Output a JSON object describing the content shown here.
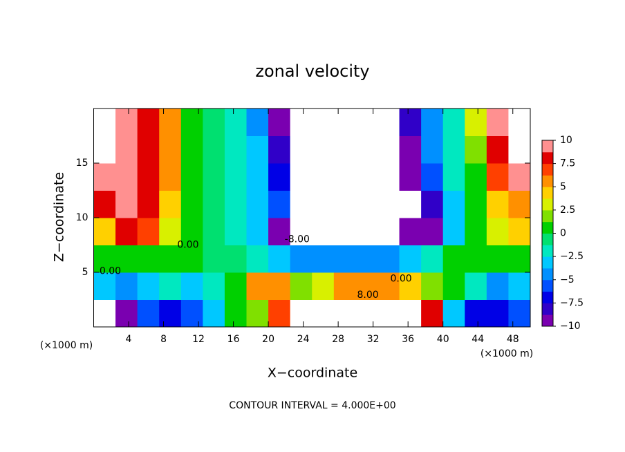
{
  "chart_data": {
    "type": "contour",
    "title": "zonal velocity",
    "xlabel": "X−coordinate",
    "ylabel": "Z−coordinate",
    "xunit": "(×1000 m)",
    "yunit": "(×1000 m)",
    "footer": "CONTOUR INTERVAL = 4.000E+00",
    "xlim": [
      0,
      50
    ],
    "ylim": [
      0,
      20
    ],
    "xticks": [
      4,
      8,
      12,
      16,
      20,
      24,
      28,
      32,
      36,
      40,
      44,
      48
    ],
    "yticks": [
      5,
      10,
      15
    ],
    "x": [
      1.25,
      3.75,
      6.25,
      8.75,
      11.25,
      13.75,
      16.25,
      18.75,
      21.25,
      23.75,
      26.25,
      28.75,
      31.25,
      33.75,
      36.25,
      38.75,
      41.25,
      43.75,
      46.25,
      48.75
    ],
    "y": [
      1.25,
      3.75,
      6.25,
      8.75,
      11.25,
      13.75,
      16.25,
      18.75
    ],
    "z": [
      [
        -12,
        -9,
        -6,
        -7,
        -6,
        -3,
        0,
        2,
        7,
        12,
        12,
        13,
        12,
        12,
        11,
        8,
        -3,
        -7,
        -7,
        -6
      ],
      [
        -3,
        -4,
        -3,
        -2,
        -3,
        -2,
        1,
        5,
        6,
        2,
        3,
        5,
        5,
        5,
        4,
        2,
        0,
        -2,
        -4,
        -3
      ],
      [
        0,
        1,
        0,
        0,
        0,
        -1,
        -1,
        -2,
        -3,
        -4,
        -4,
        -4,
        -4,
        -4,
        -3,
        -2,
        0,
        1,
        1,
        1
      ],
      [
        4,
        8,
        7,
        3,
        0,
        -1,
        -2,
        -3,
        -9,
        -11,
        -11,
        -11,
        -11,
        -11,
        -10,
        -9,
        -3,
        1,
        3,
        4
      ],
      [
        8,
        9,
        8,
        4,
        1,
        -1,
        -2,
        -3,
        -6,
        -12,
        -13,
        -14,
        -13,
        -12,
        -11,
        -8,
        -3,
        1,
        4,
        6
      ],
      [
        9,
        9,
        8,
        5,
        1,
        -1,
        -2,
        -3,
        -7,
        -12,
        -13,
        -14,
        -14,
        -12,
        -10,
        -6,
        -2,
        1,
        7,
        9
      ],
      [
        11,
        10,
        8,
        5,
        1,
        -1,
        -2,
        -3,
        -8,
        -12,
        -12,
        -12,
        -12,
        -12,
        -9,
        -5,
        -2,
        2,
        8,
        11
      ],
      [
        11,
        10,
        8,
        5,
        1,
        -1,
        -2,
        -4,
        -9,
        -12,
        -12,
        -12,
        -12,
        -11,
        -8,
        -5,
        -2,
        3,
        9,
        11
      ]
    ],
    "clim": [
      -10,
      10
    ],
    "colors": [
      "#7a00b0",
      "#3000c8",
      "#0000e6",
      "#0050ff",
      "#0090ff",
      "#00c8ff",
      "#00e8c0",
      "#00e070",
      "#00d000",
      "#80e000",
      "#d8f000",
      "#ffd000",
      "#ff9000",
      "#ff4000",
      "#e00000",
      "#ff9090"
    ],
    "out_of_range_color": "#ffffff",
    "cticks": [
      10,
      7.5,
      5,
      2.5,
      0,
      {
        "value": -2.5,
        "label": "−2.5"
      },
      {
        "value": -5,
        "label": "−5"
      },
      {
        "value": -7.5,
        "label": "−7.5"
      },
      {
        "value": -10,
        "label": "−10"
      }
    ],
    "contour_labels": [
      {
        "text": "0.00",
        "x": 1.9,
        "y": 5.1
      },
      {
        "text": "0.00",
        "x": 10.8,
        "y": 7.5
      },
      {
        "text": "-8.00",
        "x": 23.3,
        "y": 8.0
      },
      {
        "text": "0.00",
        "x": 35.2,
        "y": 4.4
      },
      {
        "text": "8.00",
        "x": 31.4,
        "y": 2.9
      }
    ]
  }
}
